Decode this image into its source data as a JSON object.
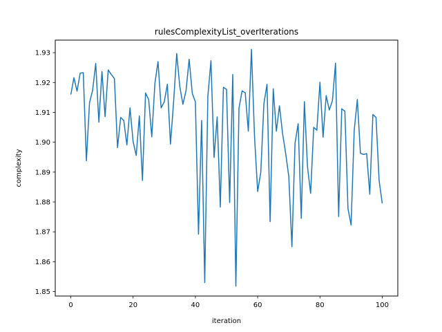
{
  "chart_data": {
    "type": "line",
    "title": "rulesComplexityList_overIterations",
    "xlabel": "iteration",
    "ylabel": "complexity",
    "xlim": [
      -5,
      105
    ],
    "ylim": [
      1.8485,
      1.9342
    ],
    "xticks": [
      0,
      20,
      40,
      60,
      80,
      100
    ],
    "yticks": [
      1.85,
      1.86,
      1.87,
      1.88,
      1.89,
      1.9,
      1.91,
      1.92,
      1.93
    ],
    "ytick_labels": [
      "1.85",
      "1.86",
      "1.87",
      "1.88",
      "1.89",
      "1.90",
      "1.91",
      "1.92",
      "1.93"
    ],
    "grid": false,
    "line_color": "#1f77b4",
    "x": [
      0,
      1,
      2,
      3,
      4,
      5,
      6,
      7,
      8,
      9,
      10,
      11,
      12,
      13,
      14,
      15,
      16,
      17,
      18,
      19,
      20,
      21,
      22,
      23,
      24,
      25,
      26,
      27,
      28,
      29,
      30,
      31,
      32,
      33,
      34,
      35,
      36,
      37,
      38,
      39,
      40,
      41,
      42,
      43,
      44,
      45,
      46,
      47,
      48,
      49,
      50,
      51,
      52,
      53,
      54,
      55,
      56,
      57,
      58,
      59,
      60,
      61,
      62,
      63,
      64,
      65,
      66,
      67,
      68,
      69,
      70,
      71,
      72,
      73,
      74,
      75,
      76,
      77,
      78,
      79,
      80,
      81,
      82,
      83,
      84,
      85,
      86,
      87,
      88,
      89,
      90,
      91,
      92,
      93,
      94,
      95,
      96,
      97,
      98,
      99,
      100
    ],
    "series": [
      {
        "values": [
          1.916,
          1.9216,
          1.9171,
          1.9231,
          1.9233,
          1.8938,
          1.9132,
          1.9174,
          1.9264,
          1.9067,
          1.9237,
          1.9086,
          1.9242,
          1.9227,
          1.9213,
          1.8982,
          1.9083,
          1.9073,
          1.8991,
          1.9115,
          1.9002,
          1.8956,
          1.9088,
          1.8872,
          1.9165,
          1.9143,
          1.9018,
          1.9197,
          1.927,
          1.9115,
          1.9135,
          1.9194,
          1.8994,
          1.9134,
          1.9297,
          1.9186,
          1.9127,
          1.9173,
          1.9278,
          1.9164,
          1.9135,
          1.8692,
          1.9073,
          1.853,
          1.9153,
          1.9273,
          1.8949,
          1.9085,
          1.8783,
          1.9184,
          1.9177,
          1.8798,
          1.9227,
          1.8518,
          1.9114,
          1.9172,
          1.9166,
          1.9037,
          1.9311,
          1.9017,
          1.8835,
          1.8899,
          1.9129,
          1.9194,
          1.8734,
          1.9179,
          1.9037,
          1.9122,
          1.9029,
          1.8962,
          1.8885,
          1.865,
          1.8997,
          1.9062,
          1.8745,
          1.9136,
          1.8918,
          1.8829,
          1.905,
          1.904,
          1.9201,
          1.9017,
          1.9156,
          1.9108,
          1.9139,
          1.9265,
          1.8751,
          1.9112,
          1.9104,
          1.8778,
          1.8723,
          1.9039,
          1.9143,
          1.8963,
          1.8959,
          1.8962,
          1.8826,
          1.9093,
          1.9083,
          1.8872,
          1.8795
        ]
      }
    ]
  }
}
